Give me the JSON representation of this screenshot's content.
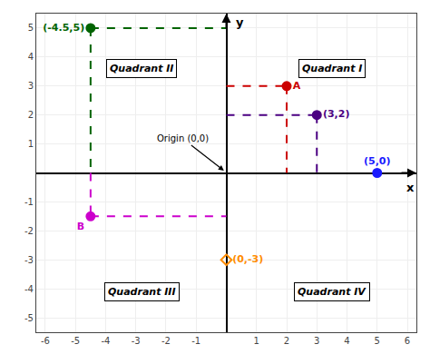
{
  "chart_data": {
    "type": "scatter",
    "x_label": "x",
    "y_label": "y",
    "xlim": [
      -6.3,
      6.3
    ],
    "ylim": [
      -5.5,
      5.5
    ],
    "xticks": [
      -6,
      -5,
      -4,
      -3,
      -2,
      -1,
      1,
      2,
      3,
      4,
      5,
      6
    ],
    "yticks": [
      -5,
      -4,
      -3,
      -2,
      -1,
      1,
      2,
      3,
      4,
      5
    ],
    "grid": true,
    "points": [
      {
        "x": -4.5,
        "y": 5,
        "label": "(-4.5,5)",
        "color": "#006400",
        "marker": "circle"
      },
      {
        "x": 3,
        "y": 2,
        "label": "(3,2)",
        "color": "#4b0082",
        "marker": "circle"
      },
      {
        "x": 2,
        "y": 3,
        "label": "A",
        "color": "#cc0000",
        "marker": "circle"
      },
      {
        "x": 5,
        "y": 0,
        "label": "(5,0)",
        "color": "#1a1aff",
        "marker": "circle"
      },
      {
        "x": -4.5,
        "y": -1.5,
        "label": "B",
        "color": "#cc00cc",
        "marker": "circle"
      },
      {
        "x": 0,
        "y": -3,
        "label": "(0,-3)",
        "color": "#ff8c00",
        "marker": "diamond-open"
      }
    ],
    "dashed_lines": [
      {
        "x1": -4.5,
        "y1": 5,
        "x2": 0,
        "y2": 5,
        "color": "#006400"
      },
      {
        "x1": -4.5,
        "y1": 5,
        "x2": -4.5,
        "y2": 0,
        "color": "#006400"
      },
      {
        "x1": 0,
        "y1": 3,
        "x2": 2,
        "y2": 3,
        "color": "#cc0000"
      },
      {
        "x1": 2,
        "y1": 3,
        "x2": 2,
        "y2": 0,
        "color": "#cc0000"
      },
      {
        "x1": 0,
        "y1": 2,
        "x2": 3,
        "y2": 2,
        "color": "#4b0082"
      },
      {
        "x1": 3,
        "y1": 2,
        "x2": 3,
        "y2": 0,
        "color": "#4b0082"
      },
      {
        "x1": -4.5,
        "y1": -1.5,
        "x2": 0,
        "y2": -1.5,
        "color": "#cc00cc"
      },
      {
        "x1": -4.5,
        "y1": 0,
        "x2": -4.5,
        "y2": -1.5,
        "color": "#cc00cc"
      }
    ],
    "annotations": [
      {
        "x": -2.8,
        "y": 3.6,
        "text": "Quadrant II"
      },
      {
        "x": 3.5,
        "y": 3.6,
        "text": "Quadrant I"
      },
      {
        "x": -2.8,
        "y": -4.1,
        "text": "Quadrant III"
      },
      {
        "x": 3.5,
        "y": -4.1,
        "text": "Quadrant IV"
      }
    ],
    "origin_label": {
      "text": "Origin (0,0)",
      "x": -0.08,
      "y": 0.08
    }
  }
}
